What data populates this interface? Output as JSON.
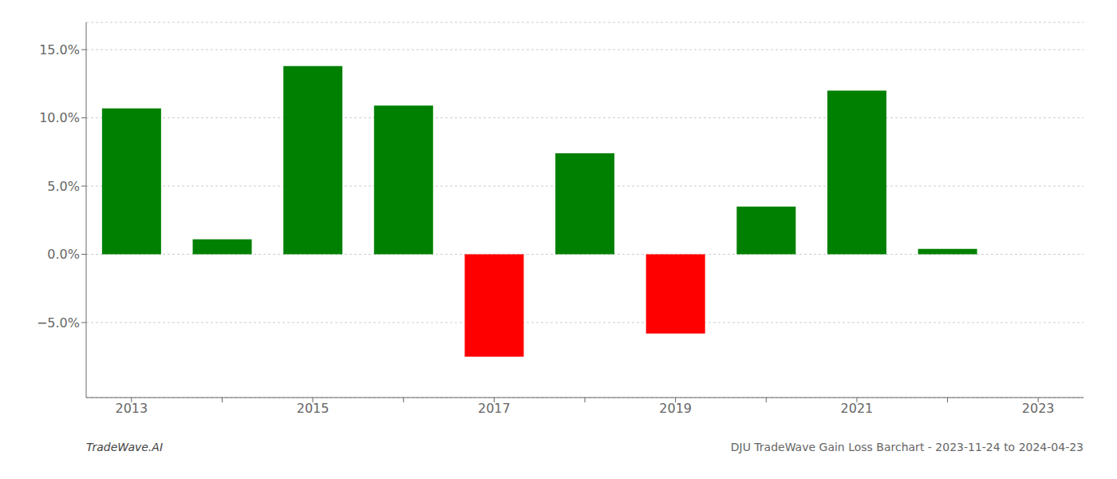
{
  "chart_data": {
    "type": "bar",
    "categories": [
      "2013",
      null,
      "2015",
      null,
      "2017",
      null,
      "2019",
      null,
      "2021",
      null,
      "2023"
    ],
    "values": [
      10.7,
      1.1,
      13.8,
      10.9,
      -7.5,
      7.4,
      -5.8,
      3.5,
      12.0,
      0.4,
      0.0
    ],
    "colors": [
      "#008000",
      "#008000",
      "#008000",
      "#008000",
      "#ff0000",
      "#008000",
      "#ff0000",
      "#008000",
      "#008000",
      "#008000",
      "#008000"
    ],
    "ylim": [
      -10.5,
      17.0
    ],
    "yticks": [
      {
        "value": -5.0,
        "label": "−5.0%"
      },
      {
        "value": 0.0,
        "label": "0.0%"
      },
      {
        "value": 5.0,
        "label": "5.0%"
      },
      {
        "value": 10.0,
        "label": "10.0%"
      },
      {
        "value": 15.0,
        "label": "15.0%"
      }
    ],
    "grid": true,
    "annotations": [
      "TradeWave.AI",
      "DJU TradeWave Gain Loss Barchart - 2023-11-24 to 2024-04-23"
    ]
  }
}
